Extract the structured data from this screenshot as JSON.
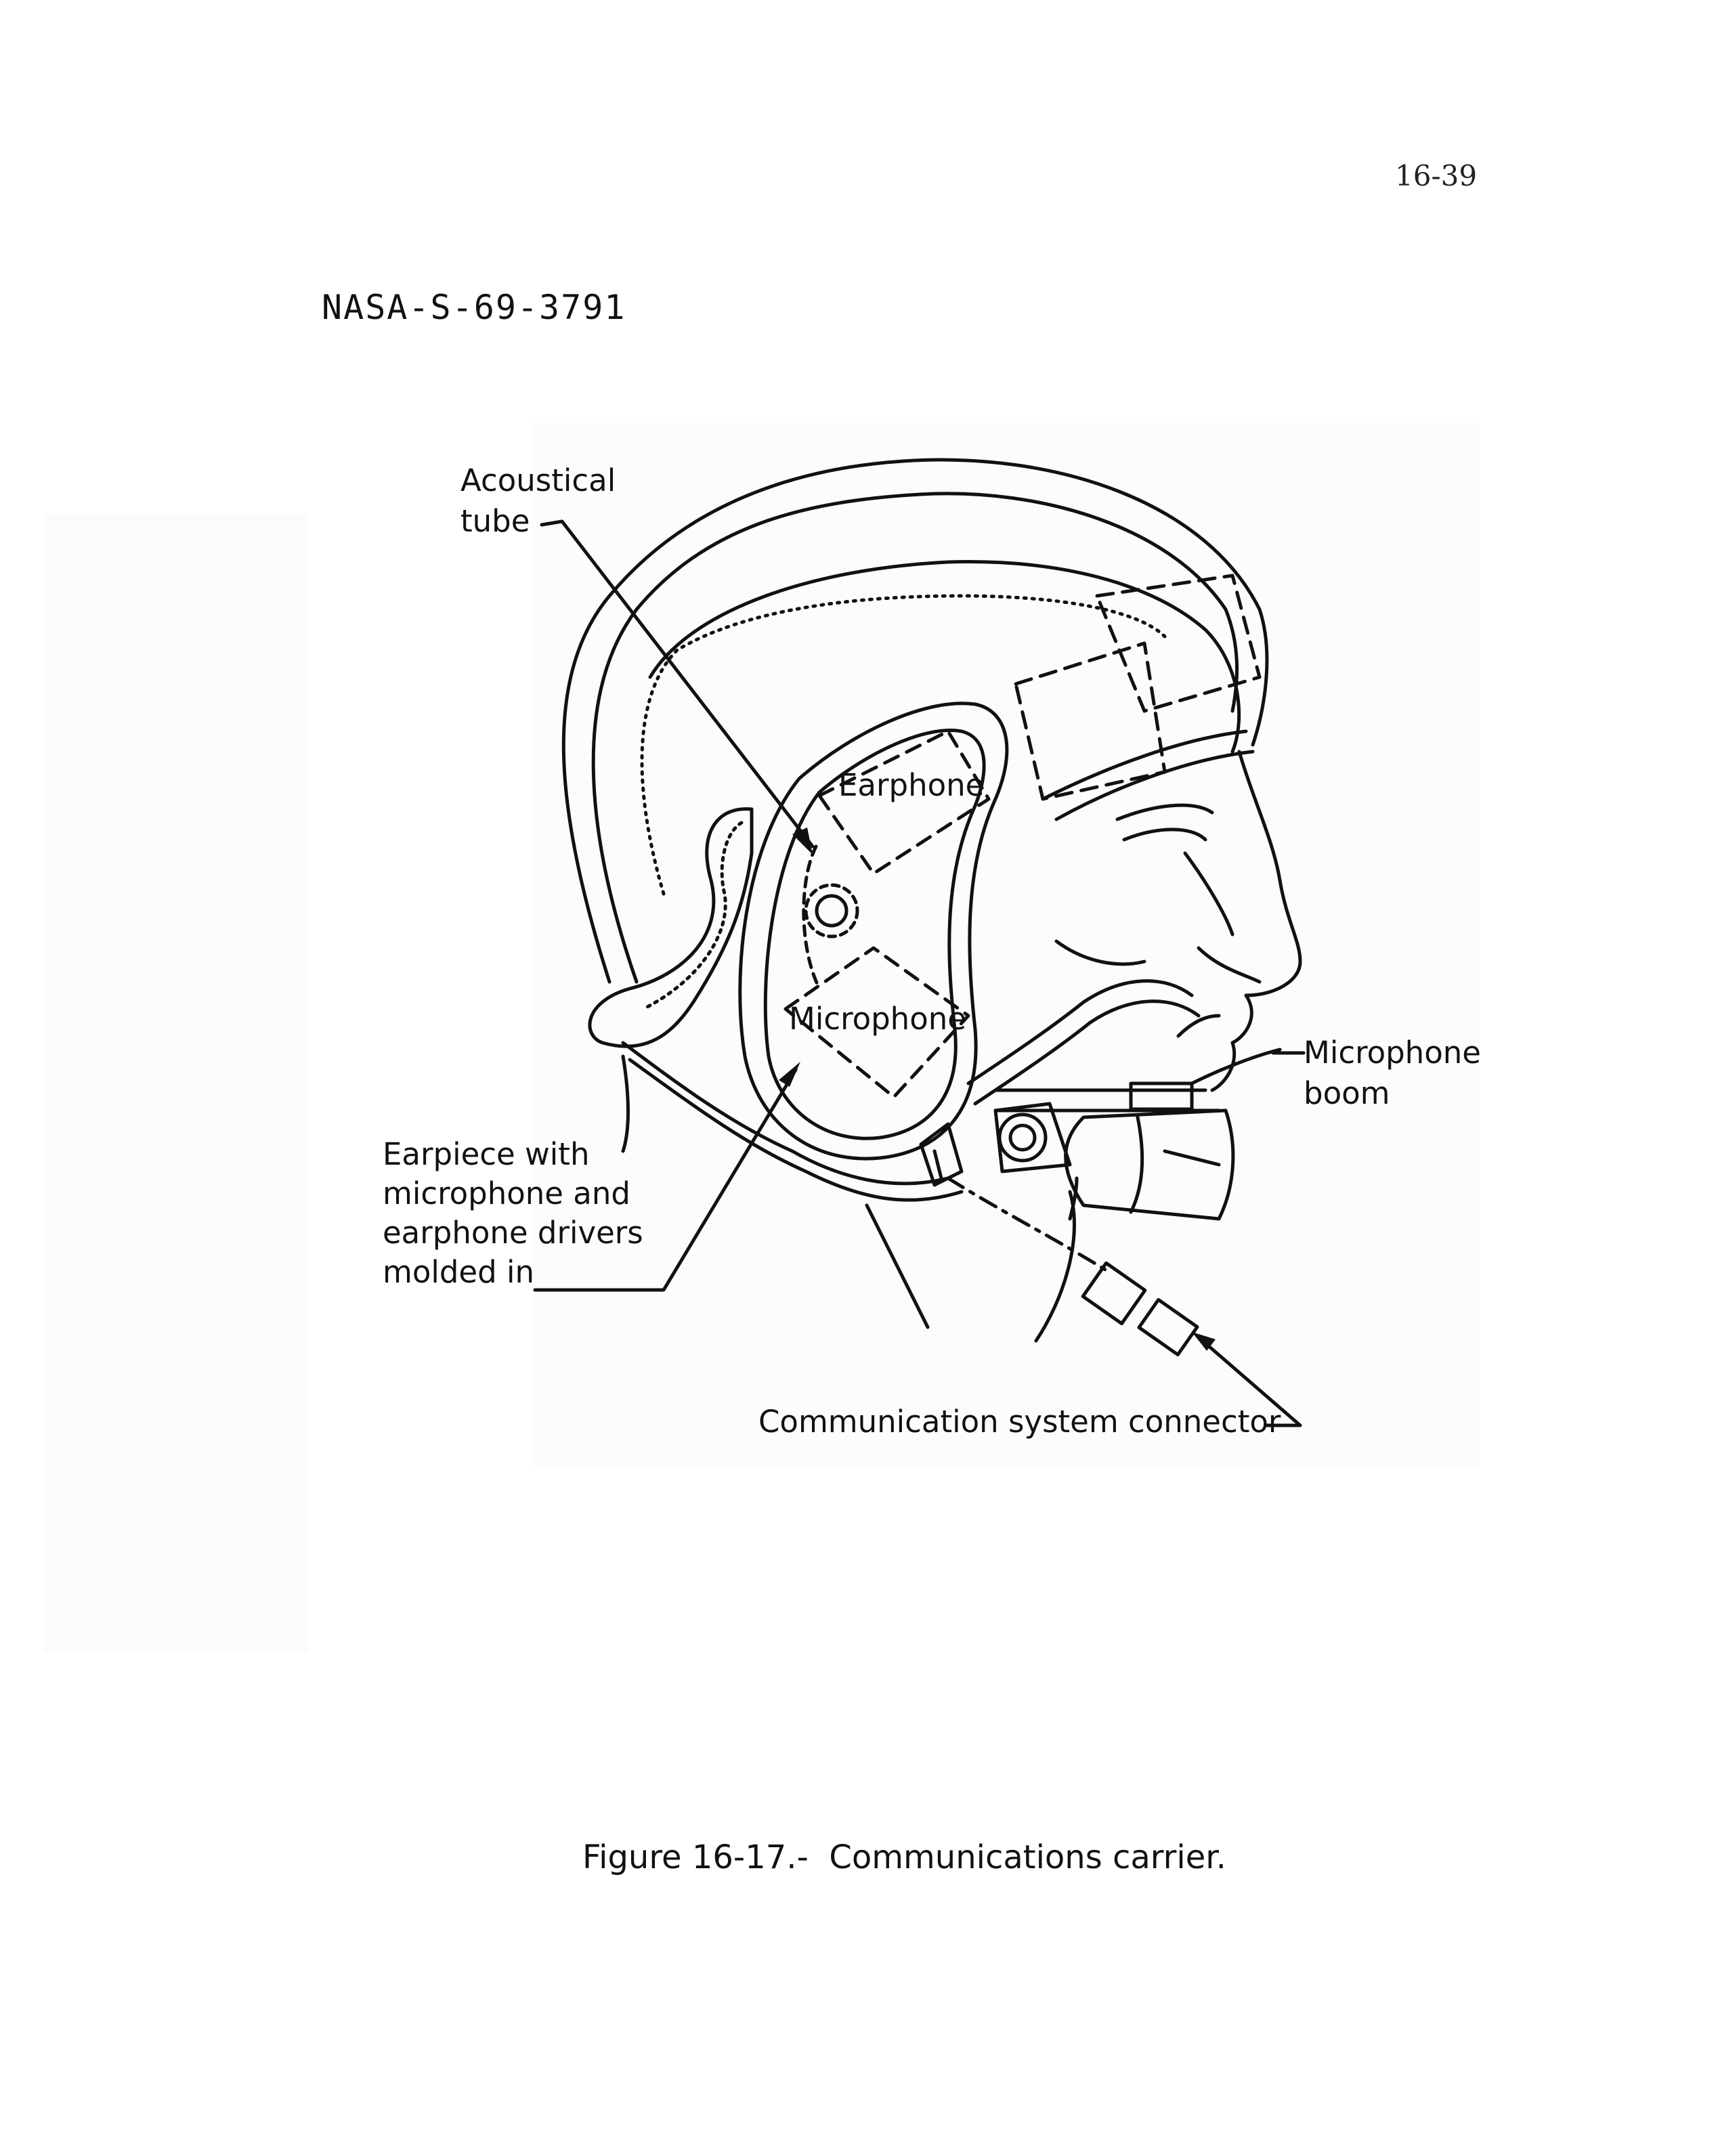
{
  "page_number": "16-39",
  "reference_id": "NASA-S-69-3791",
  "labels": {
    "acoustical_tube": [
      "Acoustical",
      "tube"
    ],
    "earphone": "Earphone",
    "microphone": "Microphone",
    "microphone_boom": [
      "Microphone",
      "boom"
    ],
    "earpiece": [
      "Earpiece with",
      "microphone and",
      "earphone drivers",
      "molded in"
    ],
    "connector": "Communication system connector"
  },
  "caption": {
    "figure_number": "Figure 16-17.-",
    "text": "Communications carrier."
  }
}
